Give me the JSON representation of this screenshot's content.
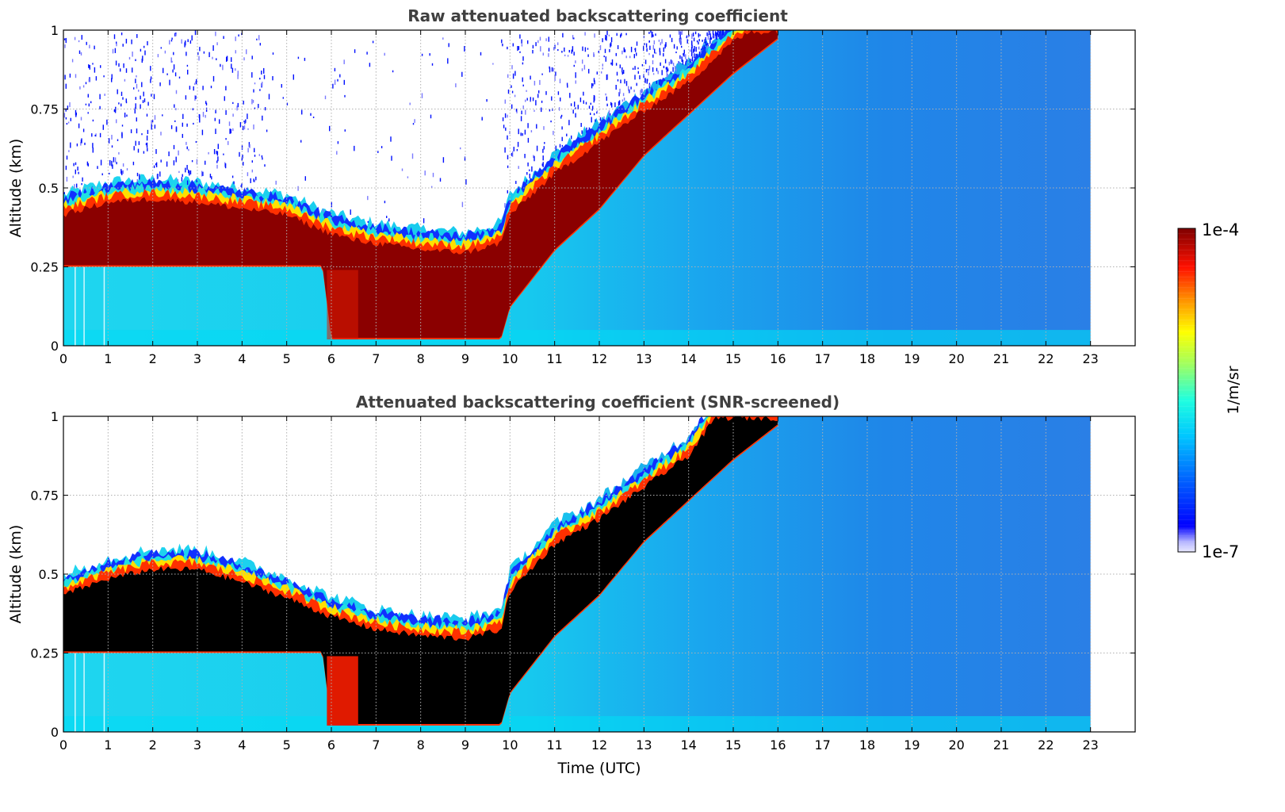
{
  "chart_data": [
    {
      "type": "heatmap",
      "title": "Raw attenuated backscattering coefficient",
      "xlabel": "",
      "ylabel": "Altitude (km)",
      "xlim": [
        0,
        24
      ],
      "ylim": [
        0,
        1
      ],
      "xticks": [
        0,
        1,
        2,
        3,
        4,
        5,
        6,
        7,
        8,
        9,
        10,
        11,
        12,
        13,
        14,
        15,
        16,
        17,
        18,
        19,
        20,
        21,
        22,
        23
      ],
      "yticks": [
        0,
        0.25,
        0.5,
        0.75,
        1
      ],
      "ytick_labels": [
        "0",
        "0.25",
        "0.5",
        "0.75",
        "1"
      ],
      "grid": true,
      "data_end_hour": 23,
      "layer_top_km": [
        {
          "t": 0,
          "v": 0.42
        },
        {
          "t": 1,
          "v": 0.46
        },
        {
          "t": 2,
          "v": 0.47
        },
        {
          "t": 3,
          "v": 0.46
        },
        {
          "t": 4,
          "v": 0.44
        },
        {
          "t": 5,
          "v": 0.42
        },
        {
          "t": 5.8,
          "v": 0.37
        },
        {
          "t": 6.5,
          "v": 0.34
        },
        {
          "t": 7,
          "v": 0.33
        },
        {
          "t": 8,
          "v": 0.31
        },
        {
          "t": 9,
          "v": 0.3
        },
        {
          "t": 9.8,
          "v": 0.33
        },
        {
          "t": 10,
          "v": 0.42
        },
        {
          "t": 11,
          "v": 0.55
        },
        {
          "t": 12,
          "v": 0.65
        },
        {
          "t": 13,
          "v": 0.75
        },
        {
          "t": 14,
          "v": 0.84
        },
        {
          "t": 15,
          "v": 0.97
        },
        {
          "t": 15.4,
          "v": 1.0
        }
      ],
      "layer_bottom_km": [
        {
          "t": 0,
          "v": 0.25
        },
        {
          "t": 5.8,
          "v": 0.25
        },
        {
          "t": 6,
          "v": 0.02
        },
        {
          "t": 9.8,
          "v": 0.02
        },
        {
          "t": 10,
          "v": 0.12
        },
        {
          "t": 11,
          "v": 0.3
        },
        {
          "t": 12,
          "v": 0.43
        },
        {
          "t": 13,
          "v": 0.6
        },
        {
          "t": 14,
          "v": 0.73
        },
        {
          "t": 15,
          "v": 0.86
        },
        {
          "t": 16,
          "v": 0.97
        }
      ],
      "noise_region": "above layer, 0-15 UTC"
    },
    {
      "type": "heatmap",
      "title": "Attenuated backscattering coefficient (SNR-screened)",
      "xlabel": "Time (UTC)",
      "ylabel": "Altitude (km)",
      "xlim": [
        0,
        24
      ],
      "ylim": [
        0,
        1
      ],
      "xticks": [
        0,
        1,
        2,
        3,
        4,
        5,
        6,
        7,
        8,
        9,
        10,
        11,
        12,
        13,
        14,
        15,
        16,
        17,
        18,
        19,
        20,
        21,
        22,
        23
      ],
      "yticks": [
        0,
        0.25,
        0.5,
        0.75,
        1
      ],
      "ytick_labels": [
        "0",
        "0.25",
        "0.5",
        "0.75",
        "1"
      ],
      "grid": true,
      "data_end_hour": 23,
      "layer_top_km": [
        {
          "t": 0,
          "v": 0.44
        },
        {
          "t": 1,
          "v": 0.49
        },
        {
          "t": 2,
          "v": 0.52
        },
        {
          "t": 3,
          "v": 0.52
        },
        {
          "t": 4,
          "v": 0.48
        },
        {
          "t": 5,
          "v": 0.43
        },
        {
          "t": 6,
          "v": 0.37
        },
        {
          "t": 7,
          "v": 0.33
        },
        {
          "t": 8,
          "v": 0.31
        },
        {
          "t": 9,
          "v": 0.3
        },
        {
          "t": 9.8,
          "v": 0.33
        },
        {
          "t": 10,
          "v": 0.45
        },
        {
          "t": 11,
          "v": 0.6
        },
        {
          "t": 12,
          "v": 0.68
        },
        {
          "t": 13,
          "v": 0.78
        },
        {
          "t": 14,
          "v": 0.88
        },
        {
          "t": 14.6,
          "v": 1.0
        }
      ],
      "layer_bottom_km": [
        {
          "t": 0,
          "v": 0.25
        },
        {
          "t": 5.8,
          "v": 0.25
        },
        {
          "t": 6,
          "v": 0.02
        },
        {
          "t": 9.8,
          "v": 0.02
        },
        {
          "t": 10,
          "v": 0.12
        },
        {
          "t": 11,
          "v": 0.3
        },
        {
          "t": 12,
          "v": 0.43
        },
        {
          "t": 13,
          "v": 0.6
        },
        {
          "t": 14,
          "v": 0.73
        },
        {
          "t": 15,
          "v": 0.86
        },
        {
          "t": 16,
          "v": 0.97
        }
      ],
      "noise_region": "none (screened, white)"
    }
  ],
  "colorbar": {
    "max_label": "1e-4",
    "min_label": "1e-7",
    "label": "1/m/sr",
    "colormap": "jet"
  },
  "colors": {
    "title": "#404040",
    "grid": "#b0b0b0",
    "low_signal": "#1a7be6",
    "background_air": "#16ccee",
    "surface_air": "#00dcf5",
    "layer_core_raw": "#8b0000",
    "layer_core_screened": "#000000"
  }
}
